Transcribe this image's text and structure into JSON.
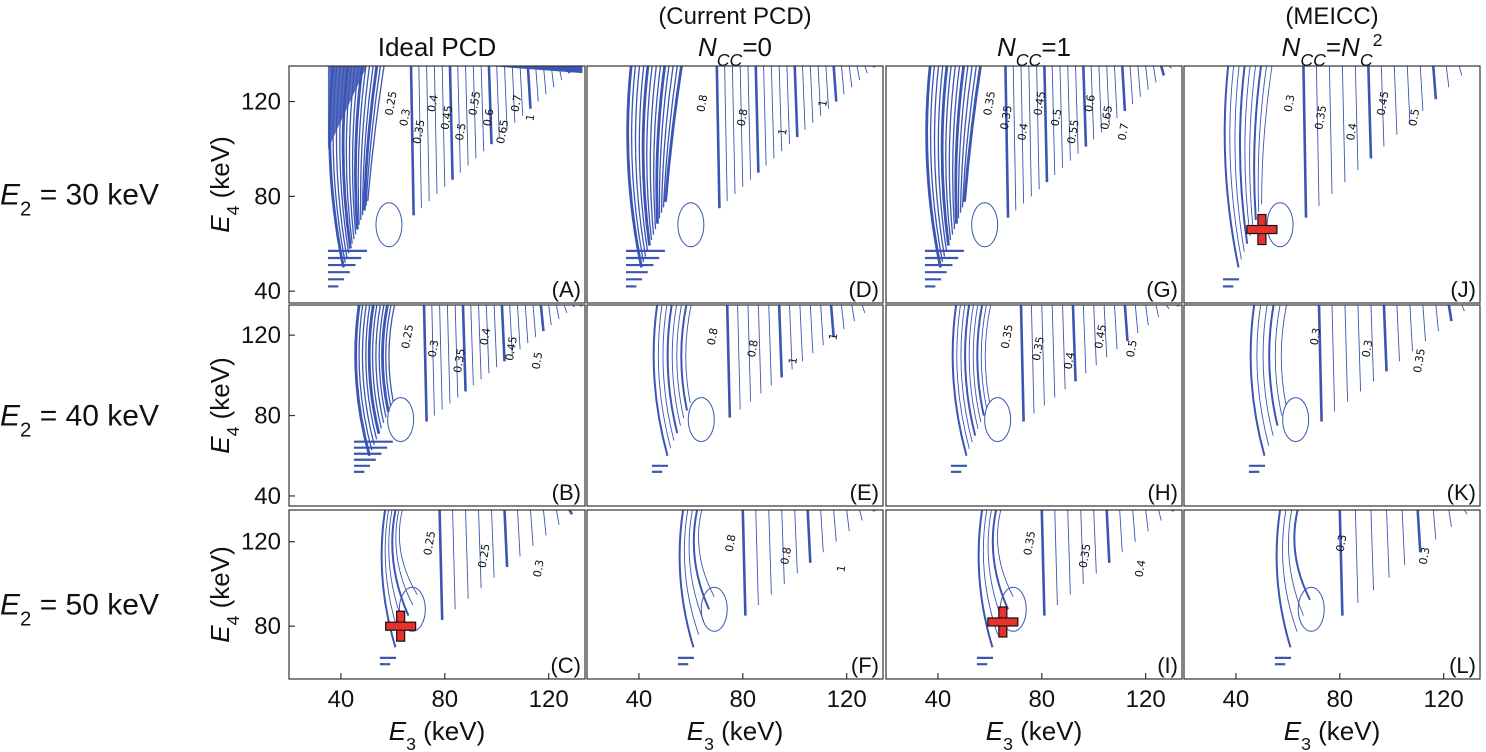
{
  "chart_data": {
    "type": "contour",
    "col_headers": [
      {
        "line1": "",
        "line2": [
          {
            "t": "Ideal PCD",
            "s": ""
          }
        ]
      },
      {
        "line1": "(Current PCD)",
        "line2": [
          {
            "t": "N",
            "s": "",
            "i": true
          },
          {
            "t": "CC",
            "s": "sub",
            "i": true
          },
          {
            "t": "=0",
            "s": ""
          }
        ]
      },
      {
        "line1": "",
        "line2": [
          {
            "t": "N",
            "s": "",
            "i": true
          },
          {
            "t": "CC",
            "s": "sub",
            "i": true
          },
          {
            "t": "=1",
            "s": ""
          }
        ]
      },
      {
        "line1": "(MEICC)",
        "line2": [
          {
            "t": "N",
            "s": "",
            "i": true
          },
          {
            "t": "CC",
            "s": "sub",
            "i": true
          },
          {
            "t": "=",
            "s": ""
          },
          {
            "t": "N",
            "s": "",
            "i": true
          },
          {
            "t": "C",
            "s": "sub",
            "i": true
          },
          {
            "t": "2",
            "s": "sup"
          }
        ]
      }
    ],
    "row_labels": [
      [
        {
          "t": "E",
          "s": "",
          "i": true
        },
        {
          "t": "2",
          "s": "sub"
        },
        {
          "t": " = 30 keV",
          "s": ""
        }
      ],
      [
        {
          "t": "E",
          "s": "",
          "i": true
        },
        {
          "t": "2",
          "s": "sub"
        },
        {
          "t": " = 40 keV",
          "s": ""
        }
      ],
      [
        {
          "t": "E",
          "s": "",
          "i": true
        },
        {
          "t": "2",
          "s": "sub"
        },
        {
          "t": " = 50 keV",
          "s": ""
        }
      ]
    ],
    "ylabel": [
      {
        "t": "E",
        "s": "",
        "i": true
      },
      {
        "t": "4",
        "s": "sub"
      },
      {
        "t": " (keV)",
        "s": ""
      }
    ],
    "xlabel": [
      {
        "t": "E",
        "s": "",
        "i": true
      },
      {
        "t": "3",
        "s": "sub"
      },
      {
        "t": " (keV)",
        "s": ""
      }
    ],
    "x_ticks": [
      40,
      80,
      120
    ],
    "y_ticks": [
      {
        "row": 0,
        "values": [
          40,
          80,
          120
        ]
      },
      {
        "row": 1,
        "values": [
          40,
          80,
          120
        ]
      },
      {
        "row": 2,
        "values": [
          80,
          120
        ]
      }
    ],
    "xlim": [
      20,
      134
    ],
    "ylim": [
      35,
      135
    ],
    "row_ylim": [
      [
        35,
        135
      ],
      [
        35,
        135
      ],
      [
        55,
        135
      ]
    ],
    "line_color": "#3a55b4",
    "marker_color": "#e8302d",
    "panels": [
      {
        "id": "A",
        "row": 0,
        "col": 0,
        "e2": 30,
        "tri": [
          35,
          40
        ],
        "density": 30,
        "valley": [
          58,
          67
        ],
        "pitch": 3,
        "dense": true,
        "filled": true,
        "levels": [
          "0.25",
          "0.3",
          "0.35",
          "0.4",
          "0.45",
          "0.5",
          "0.55",
          "0.6",
          "0.65",
          "0.7",
          "1"
        ],
        "marker": null
      },
      {
        "id": "B",
        "row": 1,
        "col": 0,
        "e2": 40,
        "tri": [
          45,
          50
        ],
        "density": 22,
        "valley": [
          62,
          72
        ],
        "pitch": 3,
        "dense": true,
        "filled": false,
        "levels": [
          "0.25",
          "0.3",
          "0.35",
          "0.4",
          "0.45",
          "0.5"
        ],
        "marker": null
      },
      {
        "id": "C",
        "row": 2,
        "col": 0,
        "e2": 50,
        "tri": [
          55,
          60
        ],
        "density": 12,
        "valley": [
          65,
          78
        ],
        "pitch": 5,
        "dense": false,
        "filled": false,
        "levels": [
          "0.25",
          "0.25",
          "0.3"
        ],
        "marker": {
          "e3": 63,
          "e4": 80
        }
      },
      {
        "id": "D",
        "row": 0,
        "col": 1,
        "e2": 30,
        "tri": [
          35,
          40
        ],
        "density": 26,
        "valley": [
          58,
          70
        ],
        "pitch": 3,
        "dense": true,
        "filled": false,
        "levels": [
          "0.8",
          "0.8",
          "1",
          "1"
        ],
        "marker": null
      },
      {
        "id": "E",
        "row": 1,
        "col": 1,
        "e2": 40,
        "tri": [
          45,
          50
        ],
        "density": 16,
        "valley": [
          62,
          74
        ],
        "pitch": 4,
        "dense": false,
        "filled": false,
        "levels": [
          "0.8",
          "0.8",
          "1",
          "1"
        ],
        "marker": null
      },
      {
        "id": "F",
        "row": 2,
        "col": 1,
        "e2": 50,
        "tri": [
          55,
          60
        ],
        "density": 9,
        "valley": [
          66,
          80
        ],
        "pitch": 5,
        "dense": false,
        "filled": false,
        "levels": [
          "0.8",
          "0.8",
          "1"
        ],
        "marker": null
      },
      {
        "id": "G",
        "row": 0,
        "col": 2,
        "e2": 30,
        "tri": [
          35,
          40
        ],
        "density": 26,
        "valley": [
          58,
          66
        ],
        "pitch": 3,
        "dense": true,
        "filled": false,
        "levels": [
          "0.35",
          "0.35",
          "0.4",
          "0.45",
          "0.5",
          "0.55",
          "0.6",
          "0.65",
          "0.7"
        ],
        "marker": null
      },
      {
        "id": "H",
        "row": 1,
        "col": 2,
        "e2": 40,
        "tri": [
          45,
          50
        ],
        "density": 18,
        "valley": [
          62,
          72
        ],
        "pitch": 4,
        "dense": false,
        "filled": false,
        "levels": [
          "0.35",
          "0.35",
          "0.4",
          "0.45",
          "0.5"
        ],
        "marker": null
      },
      {
        "id": "I",
        "row": 2,
        "col": 2,
        "e2": 50,
        "tri": [
          55,
          60
        ],
        "density": 10,
        "valley": [
          66,
          80
        ],
        "pitch": 5,
        "dense": false,
        "filled": false,
        "levels": [
          "0.35",
          "0.35",
          "0.4"
        ],
        "marker": {
          "e3": 65,
          "e4": 82
        }
      },
      {
        "id": "J",
        "row": 0,
        "col": 3,
        "e2": 30,
        "tri": [
          35,
          40
        ],
        "density": 18,
        "valley": [
          56,
          66
        ],
        "pitch": 5,
        "dense": false,
        "filled": false,
        "levels": [
          "0.3",
          "0.35",
          "0.4",
          "0.45",
          "0.5"
        ],
        "marker": {
          "e3": 50,
          "e4": 66
        }
      },
      {
        "id": "K",
        "row": 1,
        "col": 3,
        "e2": 40,
        "tri": [
          45,
          50
        ],
        "density": 12,
        "valley": [
          62,
          72
        ],
        "pitch": 5,
        "dense": false,
        "filled": false,
        "levels": [
          "0.3",
          "0.3",
          "0.35"
        ],
        "marker": null
      },
      {
        "id": "L",
        "row": 2,
        "col": 3,
        "e2": 50,
        "tri": [
          55,
          60
        ],
        "density": 8,
        "valley": [
          66,
          80
        ],
        "pitch": 6,
        "dense": false,
        "filled": false,
        "levels": [
          "0.3",
          "0.3"
        ],
        "marker": null
      }
    ]
  }
}
